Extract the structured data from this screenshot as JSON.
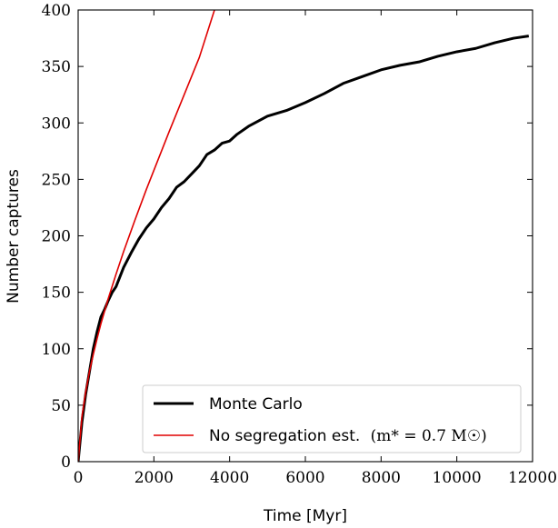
{
  "chart_data": {
    "type": "line",
    "xlabel": "Time [Myr]",
    "ylabel": "Number captures",
    "xlim": [
      0,
      12000
    ],
    "ylim": [
      0,
      400
    ],
    "xticks": [
      0,
      2000,
      4000,
      6000,
      8000,
      10000,
      12000
    ],
    "xtick_labels": [
      "0",
      "2000",
      "4000",
      "6000",
      "8000",
      "10000",
      "12000"
    ],
    "yticks": [
      0,
      50,
      100,
      150,
      200,
      250,
      300,
      350,
      400
    ],
    "ytick_labels": [
      "0",
      "50",
      "100",
      "150",
      "200",
      "250",
      "300",
      "350",
      "400"
    ],
    "grid": false,
    "legend_position": "lower-right",
    "series": [
      {
        "name": "Monte Carlo",
        "color": "#000000",
        "x": [
          0,
          100,
          200,
          300,
          400,
          500,
          600,
          700,
          800,
          900,
          1000,
          1200,
          1400,
          1600,
          1800,
          2000,
          2200,
          2400,
          2600,
          2800,
          3000,
          3200,
          3400,
          3600,
          3800,
          4000,
          4200,
          4500,
          5000,
          5500,
          6000,
          6500,
          7000,
          7500,
          8000,
          8500,
          9000,
          9500,
          10000,
          10500,
          11000,
          11500,
          11900
        ],
        "y": [
          0,
          35,
          60,
          80,
          100,
          115,
          128,
          135,
          143,
          150,
          155,
          172,
          185,
          197,
          207,
          215,
          225,
          233,
          243,
          248,
          255,
          262,
          272,
          276,
          282,
          284,
          290,
          297,
          306,
          311,
          318,
          326,
          335,
          341,
          347,
          351,
          354,
          359,
          363,
          366,
          371,
          375,
          377
        ]
      },
      {
        "name": "No segregation est.",
        "color": "#e00000",
        "x": [
          0,
          100,
          200,
          300,
          400,
          500,
          600,
          800,
          1000,
          1200,
          1500,
          1800,
          2000,
          2400,
          2800,
          3200,
          3600
        ],
        "y": [
          0,
          40,
          62,
          80,
          95,
          109,
          122,
          145,
          166,
          186,
          214,
          241,
          258,
          292,
          325,
          358,
          400
        ]
      }
    ],
    "legend_entries": [
      {
        "text": "Monte Carlo",
        "math": ""
      },
      {
        "text": "No segregation est.",
        "math": "(m* = 0.7 M☉)"
      }
    ]
  }
}
